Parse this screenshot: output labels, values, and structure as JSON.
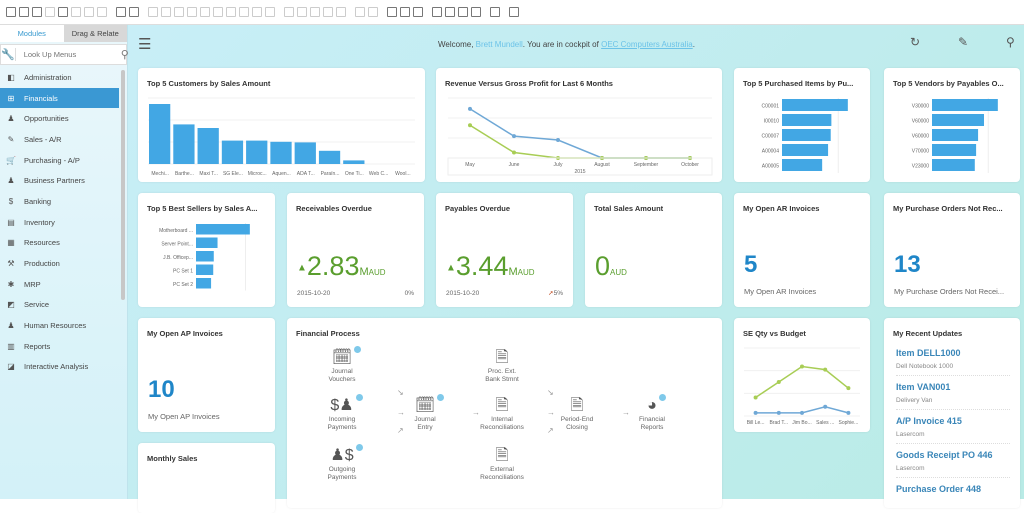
{
  "toolbar": {
    "icons": [
      "open-icon",
      "print-icon",
      "print-preview-icon",
      "email-icon",
      "export-icon",
      "pdf-icon",
      "sms-icon",
      "fax-icon",
      "move-icon",
      "settings-icon",
      "find-icon",
      "add-icon",
      "first-record-icon",
      "previous-record-icon",
      "next-record-icon",
      "last-record-icon",
      "refresh-icon",
      "filter-icon",
      "sort-icon",
      "base-document-icon",
      "target-document-icon",
      "journal-icon",
      "query-icon",
      "gross-profit-icon",
      "payment-icon",
      "preview-icon",
      "draft-icon",
      "layout-icon",
      "form-settings-icon",
      "calc-icon",
      "relationship-map-icon",
      "window-icon",
      "tile-icon",
      "cascade-icon",
      "report-icon",
      "help-icon"
    ]
  },
  "sidebar": {
    "tabs": [
      "Modules",
      "Drag & Relate"
    ],
    "lookup_placeholder": "Look Up Menus",
    "items": [
      {
        "label": "Administration",
        "icon": "◧"
      },
      {
        "label": "Financials",
        "icon": "⊞"
      },
      {
        "label": "Opportunities",
        "icon": "♟"
      },
      {
        "label": "Sales - A/R",
        "icon": "✎"
      },
      {
        "label": "Purchasing - A/P",
        "icon": "🛒"
      },
      {
        "label": "Business Partners",
        "icon": "♟"
      },
      {
        "label": "Banking",
        "icon": "$"
      },
      {
        "label": "Inventory",
        "icon": "▤"
      },
      {
        "label": "Resources",
        "icon": "▦"
      },
      {
        "label": "Production",
        "icon": "⚒"
      },
      {
        "label": "MRP",
        "icon": "✱"
      },
      {
        "label": "Service",
        "icon": "◩"
      },
      {
        "label": "Human Resources",
        "icon": "♟"
      },
      {
        "label": "Reports",
        "icon": "▥"
      },
      {
        "label": "Interactive Analysis",
        "icon": "◪"
      }
    ],
    "active": "Financials"
  },
  "header": {
    "welcome": "Welcome,",
    "user": "Brett Mundell",
    "mid": ". You are in cockpit of",
    "company": "OEC Computers Australia",
    "end": "."
  },
  "colors": {
    "accent": "#3a98d3",
    "bar": "#42a7e4",
    "kpi_green": "#5a9e2e",
    "count_blue": "#1f86c8",
    "line_blue": "#6fa8d6",
    "line_green": "#a8cd55"
  },
  "cards": {
    "top_customers": {
      "title": "Top 5 Customers by Sales Amount"
    },
    "revenue": {
      "title": "Revenue Versus Gross Profit for Last 6 Months"
    },
    "purchased": {
      "title": "Top 5 Purchased Items by Pu..."
    },
    "vendors": {
      "title": "Top 5 Vendors by Payables O..."
    },
    "best_sellers": {
      "title": "Top 5 Best Sellers by Sales A..."
    },
    "receivables": {
      "title": "Receivables Overdue",
      "value": "2.83",
      "unit_m": "M",
      "unit": "AUD",
      "date": "2015-10-20",
      "pct": "0%"
    },
    "payables": {
      "title": "Payables Overdue",
      "value": "3.44",
      "unit_m": "M",
      "unit": "AUD",
      "date": "2015-10-20",
      "pct": "5%"
    },
    "total_sales": {
      "title": "Total Sales Amount",
      "value": "0",
      "unit": "AUD"
    },
    "ar_invoices": {
      "title": "My Open AR Invoices",
      "value": "5",
      "label": "My Open AR Invoices"
    },
    "po_not_received": {
      "title": "My Purchase Orders Not Rec...",
      "value": "13",
      "label": "My Purchase Orders Not Recei..."
    },
    "ap_invoices": {
      "title": "My Open AP Invoices",
      "value": "10",
      "label": "My Open AP Invoices"
    },
    "financial_process": {
      "title": "Financial Process",
      "steps": {
        "jv": "Journal\nVouchers",
        "ip": "Incoming\nPayments",
        "op": "Outgoing\nPayments",
        "je": "Journal\nEntry",
        "pb": "Proc. Ext.\nBank Stmnt",
        "ir": "Internal\nReconciliations",
        "er": "External\nReconciliations",
        "pe": "Period-End\nClosing",
        "fr": "Financial\nReports"
      }
    },
    "se_qty": {
      "title": "SE Qty vs Budget"
    },
    "recent": {
      "title": "My Recent Updates",
      "items": [
        {
          "title": "Item DELL1000",
          "sub": "Dell Notebook 1000"
        },
        {
          "title": "Item VAN001",
          "sub": "Delivery Van"
        },
        {
          "title": "A/P Invoice 415",
          "sub": "Lasercom"
        },
        {
          "title": "Goods Receipt PO 446",
          "sub": "Lasercom"
        },
        {
          "title": "Purchase Order 448",
          "sub": ""
        }
      ]
    },
    "monthly_sales": {
      "title": "Monthly Sales"
    }
  },
  "chart_data": [
    {
      "type": "bar",
      "id": "top_customers",
      "categories": [
        "Mechi...",
        "Barthe...",
        "Maxi T...",
        "SG Ele...",
        "Microc...",
        "Aquen...",
        "ADA T...",
        "Paraín...",
        "One Ti...",
        "Web C...",
        "Wool..."
      ],
      "values": [
        100,
        66,
        60,
        39,
        39,
        37,
        36,
        22,
        6,
        0,
        0
      ],
      "ylim": [
        0,
        110
      ],
      "grid": true
    },
    {
      "type": "line",
      "id": "revenue",
      "categories": [
        "May",
        "June",
        "July",
        "August",
        "September",
        "October"
      ],
      "xgroup": "2015",
      "series": [
        {
          "values": [
            90,
            40,
            33,
            0,
            0,
            0
          ],
          "color": "#6fa8d6"
        },
        {
          "values": [
            60,
            10,
            0,
            0,
            0,
            0
          ],
          "color": "#a8cd55"
        }
      ],
      "ylim": [
        0,
        110
      ],
      "grid": true
    },
    {
      "type": "bar",
      "orientation": "horizontal",
      "id": "purchased",
      "categories": [
        "C00001",
        "I00010",
        "C00007",
        "A00004",
        "A00005"
      ],
      "values": [
        100,
        75,
        74,
        70,
        61
      ],
      "xlim": [
        0,
        120
      ]
    },
    {
      "type": "bar",
      "orientation": "horizontal",
      "id": "vendors",
      "categories": [
        "V30000",
        "V60000",
        "V60000",
        "V70000",
        "V23000"
      ],
      "values": [
        100,
        79,
        70,
        67,
        65
      ],
      "xlim": [
        0,
        120
      ]
    },
    {
      "type": "bar",
      "orientation": "horizontal",
      "id": "best_sellers",
      "categories": [
        "Motherboard ...",
        "Server Point...",
        "J.B. Officep...",
        "PC Set 1",
        "PC Set 2"
      ],
      "values": [
        100,
        40,
        33,
        32,
        28
      ],
      "xlim": [
        0,
        130
      ]
    },
    {
      "type": "line",
      "id": "se_qty",
      "categories": [
        "Bill Le...",
        "Brad T...",
        "Jim Bo...",
        "Sales ...",
        "Sophie..."
      ],
      "series": [
        {
          "values": [
            30,
            55,
            80,
            75,
            45
          ],
          "color": "#a8cd55"
        },
        {
          "values": [
            5,
            5,
            5,
            15,
            5
          ],
          "color": "#6fa8d6"
        }
      ],
      "ylim": [
        0,
        110
      ],
      "grid": true
    }
  ]
}
